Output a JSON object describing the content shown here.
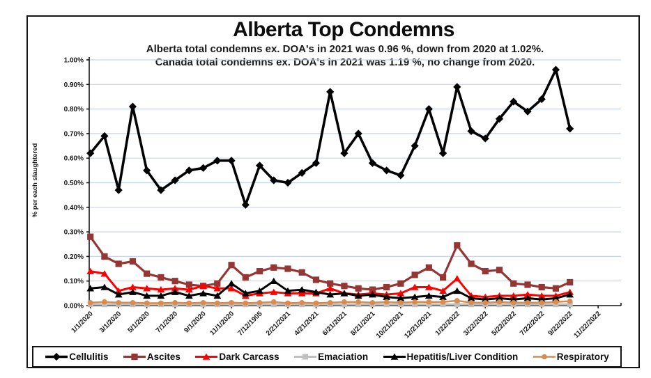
{
  "header": {
    "title": "Alberta Top Condemns",
    "subtitle_line1": "Alberta total condemns ex. DOA's in 2021 was 0.96 %, down from 2020 at 1.02%.",
    "subtitle_line2": "Canada total condemns ex. DOA's in 2021 was 1.19 %, no change from 2020."
  },
  "chart_data": {
    "type": "line",
    "title": "Alberta Top Condemns",
    "ylabel": "% per each slaughtered",
    "y_unit": "percent",
    "ylim": [
      0,
      1.0
    ],
    "ytick_step": 0.1,
    "ytick_labels": [
      "0.00%",
      "0.10%",
      "0.20%",
      "0.30%",
      "0.40%",
      "0.50%",
      "0.60%",
      "0.70%",
      "0.80%",
      "0.90%",
      "1.00%"
    ],
    "x_tick_labels": [
      "1/1/2020",
      "3/1/2020",
      "5/1/2020",
      "7/1/2020",
      "9/1/2020",
      "11/1/2020",
      "7/12/1905",
      "2/21/2021",
      "4/21/2021",
      "6/21/2021",
      "8/21/2021",
      "10/21/2021",
      "12/21/2021",
      "1/22/2022",
      "3/22/2022",
      "5/22/2022",
      "7/22/2022",
      "9/22/2022",
      "11/22/2022"
    ],
    "points_per_tick": 2,
    "num_points": 35,
    "grid": "horizontal",
    "gridline_color": "#c5d5ee",
    "legend_position": "bottom",
    "series": [
      {
        "name": "Cellulitis",
        "color": "#000000",
        "marker": "diamond",
        "line_width": 3.6,
        "values": [
          0.62,
          0.69,
          0.47,
          0.81,
          0.55,
          0.47,
          0.51,
          0.55,
          0.56,
          0.59,
          0.59,
          0.41,
          0.57,
          0.51,
          0.5,
          0.54,
          0.58,
          0.87,
          0.62,
          0.7,
          0.58,
          0.55,
          0.53,
          0.65,
          0.8,
          0.62,
          0.89,
          0.71,
          0.68,
          0.76,
          0.83,
          0.79,
          0.84,
          0.96,
          0.72
        ]
      },
      {
        "name": "Ascites",
        "color": "#943634",
        "marker": "square",
        "line_width": 3.2,
        "values": [
          0.28,
          0.2,
          0.17,
          0.18,
          0.13,
          0.115,
          0.1,
          0.085,
          0.08,
          0.09,
          0.165,
          0.115,
          0.14,
          0.155,
          0.15,
          0.135,
          0.105,
          0.09,
          0.08,
          0.07,
          0.065,
          0.075,
          0.09,
          0.125,
          0.155,
          0.115,
          0.245,
          0.17,
          0.14,
          0.145,
          0.09,
          0.085,
          0.075,
          0.07,
          0.095
        ]
      },
      {
        "name": "Dark Carcass",
        "color": "#ff0000",
        "marker": "triangle",
        "line_width": 3,
        "values": [
          0.14,
          0.13,
          0.06,
          0.075,
          0.07,
          0.065,
          0.07,
          0.065,
          0.08,
          0.07,
          0.07,
          0.04,
          0.05,
          0.055,
          0.05,
          0.05,
          0.05,
          0.07,
          0.05,
          0.045,
          0.05,
          0.045,
          0.05,
          0.075,
          0.075,
          0.06,
          0.11,
          0.04,
          0.035,
          0.04,
          0.04,
          0.045,
          0.04,
          0.04,
          0.055
        ]
      },
      {
        "name": "Emaciation",
        "color": "#bfbfbf",
        "marker": "square",
        "line_width": 3,
        "values": [
          0.005,
          0.005,
          0.005,
          0.005,
          0.005,
          0.005,
          0.005,
          0.005,
          0.005,
          0.005,
          0.005,
          0.005,
          0.005,
          0.005,
          0.005,
          0.005,
          0.005,
          0.005,
          0.005,
          0.005,
          0.005,
          0.005,
          0.005,
          0.005,
          0.005,
          0.005,
          0.005,
          0.005,
          0.005,
          0.005,
          0.005,
          0.005,
          0.005,
          0.005,
          0.005
        ]
      },
      {
        "name": "Hepatitis/Liver Condition",
        "color": "#000000",
        "marker": "triangle",
        "line_width": 3,
        "values": [
          0.07,
          0.075,
          0.045,
          0.055,
          0.04,
          0.04,
          0.055,
          0.04,
          0.05,
          0.04,
          0.09,
          0.05,
          0.06,
          0.1,
          0.06,
          0.065,
          0.055,
          0.045,
          0.05,
          0.04,
          0.045,
          0.035,
          0.03,
          0.035,
          0.04,
          0.035,
          0.06,
          0.03,
          0.025,
          0.03,
          0.025,
          0.03,
          0.025,
          0.03,
          0.045
        ]
      },
      {
        "name": "Respiratory",
        "color": "#d98c4f",
        "marker": "circle",
        "line_width": 2.5,
        "values": [
          0.012,
          0.015,
          0.012,
          0.012,
          0.01,
          0.01,
          0.012,
          0.01,
          0.012,
          0.01,
          0.012,
          0.01,
          0.012,
          0.015,
          0.01,
          0.012,
          0.01,
          0.012,
          0.015,
          0.015,
          0.012,
          0.015,
          0.012,
          0.015,
          0.015,
          0.015,
          0.02,
          0.012,
          0.012,
          0.015,
          0.012,
          0.012,
          0.012,
          0.015,
          0.018
        ]
      }
    ]
  }
}
